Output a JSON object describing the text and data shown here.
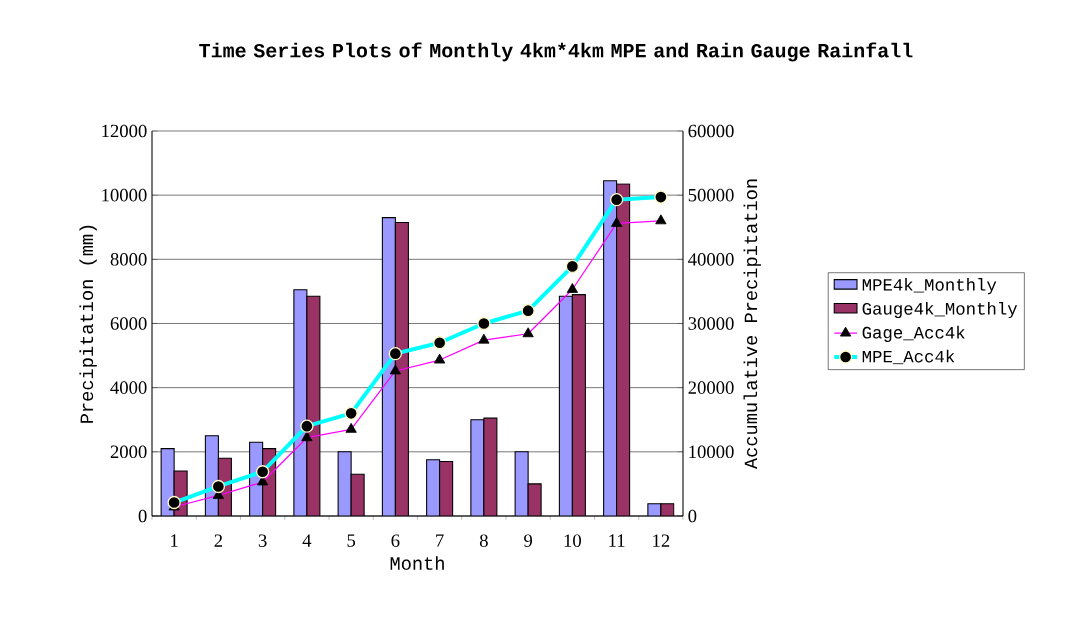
{
  "chart_data": {
    "type": "bar",
    "title": "Time Series Plots of Monthly 4km*4km MPE and Rain Gauge Rainfall",
    "xlabel": "Month",
    "ylabel": "Precipitation (mm)",
    "y2label": "Accumulative Precipitation",
    "categories": [
      "1",
      "2",
      "3",
      "4",
      "5",
      "6",
      "7",
      "8",
      "9",
      "10",
      "11",
      "12"
    ],
    "series": [
      {
        "name": "MPE4k_Monthly",
        "color": "#9999ff",
        "values": [
          2100,
          2500,
          2300,
          7050,
          2000,
          9300,
          1750,
          3000,
          2000,
          6850,
          10450,
          380
        ]
      },
      {
        "name": "Gauge4k_Monthly",
        "color": "#993366",
        "values": [
          1400,
          1800,
          2100,
          6850,
          1300,
          9150,
          1700,
          3050,
          1000,
          6900,
          10350,
          380
        ]
      },
      {
        "name": "Gage_Acc4k",
        "type": "line",
        "axis": "y2",
        "marker": "triangle",
        "color": "#ff00ff",
        "values": [
          1400,
          3200,
          5300,
          12200,
          13500,
          22600,
          24300,
          27400,
          28400,
          35300,
          45600,
          46000
        ]
      },
      {
        "name": "MPE_Acc4k",
        "type": "line",
        "axis": "y2",
        "marker": "circle",
        "color": "#00ffff",
        "values": [
          2100,
          4600,
          6900,
          14000,
          16000,
          25300,
          27000,
          30000,
          32000,
          38900,
          49300,
          49700
        ]
      }
    ],
    "ylim": [
      0,
      12000
    ],
    "yticks": [
      0,
      2000,
      4000,
      6000,
      8000,
      10000,
      12000
    ],
    "y2lim": [
      0,
      60000
    ],
    "y2ticks": [
      0,
      10000,
      20000,
      30000,
      40000,
      50000,
      60000
    ],
    "grid": "y",
    "legend": "right"
  }
}
